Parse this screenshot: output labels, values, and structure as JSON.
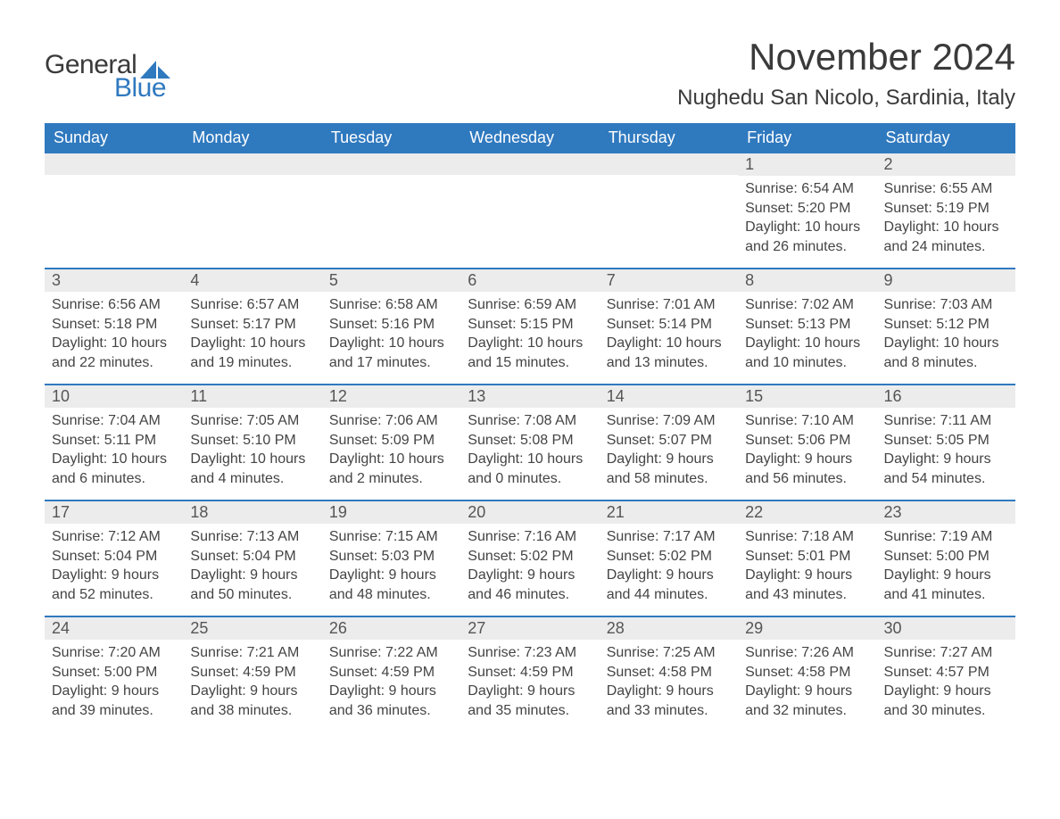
{
  "brand": {
    "word1": "General",
    "word2": "Blue",
    "accent_color": "#2f79bf",
    "text_color": "#3a3a3a"
  },
  "title": "November 2024",
  "location": "Nughedu San Nicolo, Sardinia, Italy",
  "colors": {
    "header_bg": "#2f79bf",
    "header_text": "#ffffff",
    "row_divider": "#2f79bf",
    "daynum_strip_bg": "#ececec",
    "body_text": "#444444",
    "background": "#ffffff"
  },
  "fonts": {
    "title_size_pt": 42,
    "location_size_pt": 24,
    "weekday_size_pt": 18,
    "daynum_size_pt": 18,
    "body_size_pt": 16
  },
  "layout": {
    "columns": 7,
    "rows": 5,
    "leading_blank_cells": 5
  },
  "weekdays": [
    "Sunday",
    "Monday",
    "Tuesday",
    "Wednesday",
    "Thursday",
    "Friday",
    "Saturday"
  ],
  "days": [
    {
      "n": 1,
      "sunrise": "6:54 AM",
      "sunset": "5:20 PM",
      "daylight": "10 hours and 26 minutes."
    },
    {
      "n": 2,
      "sunrise": "6:55 AM",
      "sunset": "5:19 PM",
      "daylight": "10 hours and 24 minutes."
    },
    {
      "n": 3,
      "sunrise": "6:56 AM",
      "sunset": "5:18 PM",
      "daylight": "10 hours and 22 minutes."
    },
    {
      "n": 4,
      "sunrise": "6:57 AM",
      "sunset": "5:17 PM",
      "daylight": "10 hours and 19 minutes."
    },
    {
      "n": 5,
      "sunrise": "6:58 AM",
      "sunset": "5:16 PM",
      "daylight": "10 hours and 17 minutes."
    },
    {
      "n": 6,
      "sunrise": "6:59 AM",
      "sunset": "5:15 PM",
      "daylight": "10 hours and 15 minutes."
    },
    {
      "n": 7,
      "sunrise": "7:01 AM",
      "sunset": "5:14 PM",
      "daylight": "10 hours and 13 minutes."
    },
    {
      "n": 8,
      "sunrise": "7:02 AM",
      "sunset": "5:13 PM",
      "daylight": "10 hours and 10 minutes."
    },
    {
      "n": 9,
      "sunrise": "7:03 AM",
      "sunset": "5:12 PM",
      "daylight": "10 hours and 8 minutes."
    },
    {
      "n": 10,
      "sunrise": "7:04 AM",
      "sunset": "5:11 PM",
      "daylight": "10 hours and 6 minutes."
    },
    {
      "n": 11,
      "sunrise": "7:05 AM",
      "sunset": "5:10 PM",
      "daylight": "10 hours and 4 minutes."
    },
    {
      "n": 12,
      "sunrise": "7:06 AM",
      "sunset": "5:09 PM",
      "daylight": "10 hours and 2 minutes."
    },
    {
      "n": 13,
      "sunrise": "7:08 AM",
      "sunset": "5:08 PM",
      "daylight": "10 hours and 0 minutes."
    },
    {
      "n": 14,
      "sunrise": "7:09 AM",
      "sunset": "5:07 PM",
      "daylight": "9 hours and 58 minutes."
    },
    {
      "n": 15,
      "sunrise": "7:10 AM",
      "sunset": "5:06 PM",
      "daylight": "9 hours and 56 minutes."
    },
    {
      "n": 16,
      "sunrise": "7:11 AM",
      "sunset": "5:05 PM",
      "daylight": "9 hours and 54 minutes."
    },
    {
      "n": 17,
      "sunrise": "7:12 AM",
      "sunset": "5:04 PM",
      "daylight": "9 hours and 52 minutes."
    },
    {
      "n": 18,
      "sunrise": "7:13 AM",
      "sunset": "5:04 PM",
      "daylight": "9 hours and 50 minutes."
    },
    {
      "n": 19,
      "sunrise": "7:15 AM",
      "sunset": "5:03 PM",
      "daylight": "9 hours and 48 minutes."
    },
    {
      "n": 20,
      "sunrise": "7:16 AM",
      "sunset": "5:02 PM",
      "daylight": "9 hours and 46 minutes."
    },
    {
      "n": 21,
      "sunrise": "7:17 AM",
      "sunset": "5:02 PM",
      "daylight": "9 hours and 44 minutes."
    },
    {
      "n": 22,
      "sunrise": "7:18 AM",
      "sunset": "5:01 PM",
      "daylight": "9 hours and 43 minutes."
    },
    {
      "n": 23,
      "sunrise": "7:19 AM",
      "sunset": "5:00 PM",
      "daylight": "9 hours and 41 minutes."
    },
    {
      "n": 24,
      "sunrise": "7:20 AM",
      "sunset": "5:00 PM",
      "daylight": "9 hours and 39 minutes."
    },
    {
      "n": 25,
      "sunrise": "7:21 AM",
      "sunset": "4:59 PM",
      "daylight": "9 hours and 38 minutes."
    },
    {
      "n": 26,
      "sunrise": "7:22 AM",
      "sunset": "4:59 PM",
      "daylight": "9 hours and 36 minutes."
    },
    {
      "n": 27,
      "sunrise": "7:23 AM",
      "sunset": "4:59 PM",
      "daylight": "9 hours and 35 minutes."
    },
    {
      "n": 28,
      "sunrise": "7:25 AM",
      "sunset": "4:58 PM",
      "daylight": "9 hours and 33 minutes."
    },
    {
      "n": 29,
      "sunrise": "7:26 AM",
      "sunset": "4:58 PM",
      "daylight": "9 hours and 32 minutes."
    },
    {
      "n": 30,
      "sunrise": "7:27 AM",
      "sunset": "4:57 PM",
      "daylight": "9 hours and 30 minutes."
    }
  ],
  "labels": {
    "sunrise": "Sunrise:",
    "sunset": "Sunset:",
    "daylight": "Daylight:"
  }
}
